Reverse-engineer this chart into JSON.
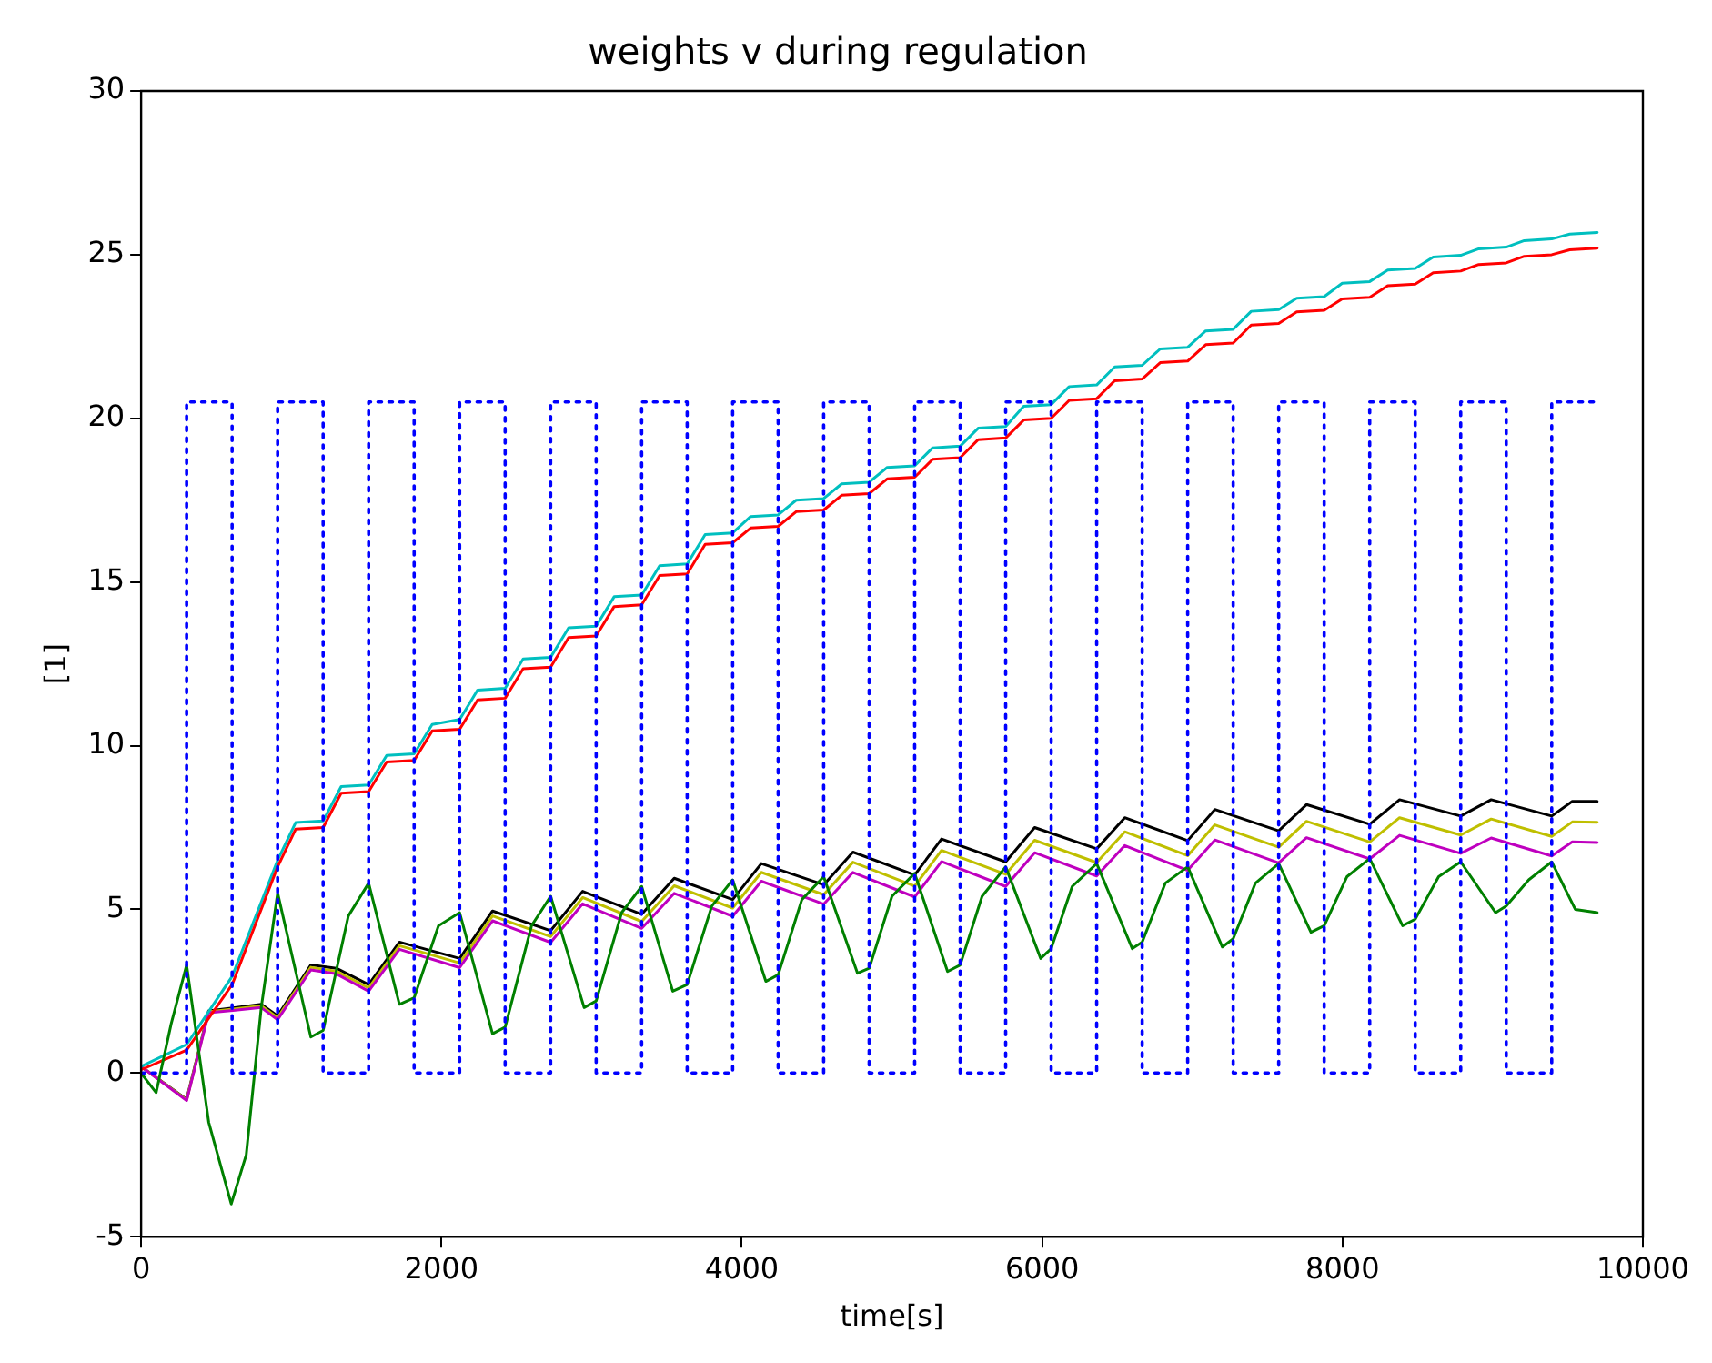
{
  "chart_data": {
    "type": "line",
    "title": "weights v during regulation",
    "xlabel": "time[s]",
    "ylabel": "[1]",
    "xlim": [
      0,
      10000
    ],
    "xticks": [
      0,
      2000,
      4000,
      6000,
      8000,
      10000
    ],
    "ylim": [
      -5,
      30
    ],
    "yticks": [
      -5,
      0,
      5,
      10,
      15,
      20,
      25,
      30
    ],
    "grid": false,
    "legend": false,
    "marker": "none",
    "series": [
      {
        "color": "#0000ff",
        "line_style": "dotted",
        "x": [
          0,
          303,
          303,
          606,
          606,
          909,
          909,
          1212,
          1212,
          1515,
          1515,
          1818,
          1818,
          2121,
          2121,
          2424,
          2424,
          2727,
          2727,
          3030,
          3030,
          3333,
          3333,
          3636,
          3636,
          3939,
          3939,
          4242,
          4242,
          4545,
          4545,
          4848,
          4848,
          5151,
          5151,
          5454,
          5454,
          5757,
          5757,
          6060,
          6060,
          6363,
          6363,
          6666,
          6666,
          6969,
          6969,
          7272,
          7272,
          7575,
          7575,
          7878,
          7878,
          8181,
          8181,
          8484,
          8484,
          8787,
          8787,
          9090,
          9090,
          9393,
          9393,
          9696
        ],
        "values": [
          0,
          0,
          20.5,
          20.5,
          0,
          0,
          20.5,
          20.5,
          0,
          0,
          20.5,
          20.5,
          0,
          0,
          20.5,
          20.5,
          0,
          0,
          20.5,
          20.5,
          0,
          0,
          20.5,
          20.5,
          0,
          0,
          20.5,
          20.5,
          0,
          0,
          20.5,
          20.5,
          0,
          0,
          20.5,
          20.5,
          0,
          0,
          20.5,
          20.5,
          0,
          0,
          20.5,
          20.5,
          0,
          0,
          20.5,
          20.5,
          0,
          0,
          20.5,
          20.5,
          0,
          0,
          20.5,
          20.5,
          0,
          0,
          20.5,
          20.5,
          0,
          0,
          20.5,
          20.5
        ]
      },
      {
        "color": "#008000",
        "x": [
          0,
          100,
          200,
          303,
          450,
          600,
          700,
          800,
          909,
          1130,
          1212,
          1380,
          1515,
          1720,
          1818,
          1980,
          2121,
          2340,
          2424,
          2600,
          2727,
          2950,
          3030,
          3200,
          3333,
          3540,
          3636,
          3800,
          3939,
          4160,
          4242,
          4400,
          4545,
          4770,
          4848,
          5000,
          5151,
          5370,
          5454,
          5600,
          5757,
          5990,
          6060,
          6200,
          6363,
          6600,
          6666,
          6820,
          6969,
          7200,
          7272,
          7420,
          7575,
          7790,
          7878,
          8030,
          8181,
          8400,
          8484,
          8640,
          8787,
          9020,
          9090,
          9240,
          9393,
          9550,
          9696
        ],
        "values": [
          0,
          -0.6,
          1.5,
          3.3,
          -1.5,
          -4,
          -2.5,
          2,
          5.5,
          1.1,
          1.3,
          4.8,
          5.8,
          2.1,
          2.3,
          4.5,
          4.9,
          1.2,
          1.4,
          4.5,
          5.4,
          2,
          2.2,
          4.9,
          5.7,
          2.5,
          2.7,
          5.1,
          5.9,
          2.8,
          3,
          5.3,
          6,
          3.05,
          3.2,
          5.4,
          6.1,
          3.1,
          3.3,
          5.4,
          6.3,
          3.5,
          3.8,
          5.7,
          6.4,
          3.8,
          4,
          5.8,
          6.3,
          3.85,
          4.1,
          5.8,
          6.4,
          4.3,
          4.5,
          6,
          6.55,
          4.5,
          4.7,
          6,
          6.45,
          4.9,
          5.1,
          5.9,
          6.45,
          5,
          4.9
        ]
      },
      {
        "color": "#ff0000",
        "x": [
          0,
          303,
          606,
          909,
          1029,
          1212,
          1332,
          1515,
          1635,
          1818,
          1938,
          2121,
          2241,
          2424,
          2544,
          2727,
          2847,
          3030,
          3150,
          3333,
          3453,
          3636,
          3756,
          3939,
          4059,
          4242,
          4362,
          4545,
          4665,
          4848,
          4968,
          5151,
          5271,
          5454,
          5574,
          5757,
          5877,
          6060,
          6180,
          6363,
          6483,
          6666,
          6786,
          6969,
          7089,
          7272,
          7392,
          7575,
          7695,
          7878,
          7998,
          8181,
          8301,
          8484,
          8604,
          8787,
          8907,
          9090,
          9210,
          9393,
          9513,
          9696
        ],
        "values": [
          0.1,
          0.7,
          2.7,
          6.3,
          7.45,
          7.5,
          8.55,
          8.6,
          9.5,
          9.55,
          10.45,
          10.5,
          11.4,
          11.45,
          12.35,
          12.4,
          13.3,
          13.35,
          14.25,
          14.3,
          15.2,
          15.25,
          16.15,
          16.2,
          16.65,
          16.7,
          17.15,
          17.2,
          17.65,
          17.7,
          18.15,
          18.2,
          18.75,
          18.8,
          19.35,
          19.4,
          19.95,
          20,
          20.55,
          20.6,
          21.15,
          21.2,
          21.7,
          21.75,
          22.25,
          22.3,
          22.85,
          22.9,
          23.25,
          23.3,
          23.65,
          23.7,
          24.05,
          24.1,
          24.45,
          24.5,
          24.7,
          24.75,
          24.95,
          25,
          25.15,
          25.2
        ]
      },
      {
        "color": "#00bfbf",
        "x": [
          0,
          303,
          606,
          909,
          1029,
          1212,
          1332,
          1515,
          1635,
          1818,
          1938,
          2121,
          2241,
          2424,
          2544,
          2727,
          2847,
          3030,
          3150,
          3333,
          3453,
          3636,
          3756,
          3939,
          4059,
          4242,
          4362,
          4545,
          4665,
          4848,
          4968,
          5151,
          5271,
          5454,
          5574,
          5757,
          5877,
          6060,
          6180,
          6363,
          6483,
          6666,
          6786,
          6969,
          7089,
          7272,
          7392,
          7575,
          7695,
          7878,
          7998,
          8181,
          8301,
          8484,
          8604,
          8787,
          8907,
          9090,
          9210,
          9393,
          9513,
          9696
        ],
        "values": [
          0.2,
          0.87,
          2.95,
          6.5,
          7.65,
          7.7,
          8.75,
          8.8,
          9.7,
          9.75,
          10.65,
          10.8,
          11.7,
          11.75,
          12.65,
          12.7,
          13.6,
          13.65,
          14.55,
          14.6,
          15.5,
          15.55,
          16.45,
          16.5,
          17,
          17.05,
          17.5,
          17.55,
          18,
          18.05,
          18.5,
          18.55,
          19.1,
          19.15,
          19.7,
          19.75,
          20.37,
          20.42,
          20.97,
          21.02,
          21.57,
          21.62,
          22.12,
          22.17,
          22.67,
          22.72,
          23.27,
          23.32,
          23.67,
          23.72,
          24.13,
          24.18,
          24.53,
          24.58,
          24.93,
          24.98,
          25.18,
          25.23,
          25.43,
          25.48,
          25.63,
          25.68
        ]
      },
      {
        "color": "#bf00bf",
        "x": [
          0,
          303,
          450,
          800,
          909,
          1130,
          1300,
          1515,
          1720,
          2121,
          2340,
          2727,
          2940,
          3333,
          3550,
          3939,
          4130,
          4545,
          4740,
          5151,
          5330,
          5757,
          5950,
          6363,
          6550,
          6969,
          7150,
          7575,
          7760,
          8181,
          8380,
          8787,
          8990,
          9393,
          9530,
          9696
        ],
        "values": [
          0.2,
          -0.84,
          1.84,
          2,
          1.63,
          3.15,
          3.03,
          2.5,
          3.78,
          3.22,
          4.65,
          3.99,
          5.17,
          4.42,
          5.49,
          4.79,
          5.86,
          5.16,
          6.13,
          5.38,
          6.46,
          5.7,
          6.73,
          6.02,
          6.95,
          6.19,
          7.12,
          6.42,
          7.19,
          6.54,
          7.26,
          6.71,
          7.18,
          6.63,
          7.06,
          7.04
        ]
      },
      {
        "color": "#bfbf00",
        "x": [
          0,
          303,
          450,
          800,
          909,
          1130,
          1300,
          1515,
          1720,
          2121,
          2340,
          2727,
          2940,
          3333,
          3550,
          3939,
          4130,
          4545,
          4740,
          5151,
          5330,
          5757,
          5950,
          6363,
          6550,
          6969,
          7150,
          7575,
          7760,
          8181,
          8380,
          8787,
          8990,
          9393,
          9530,
          9696
        ],
        "values": [
          0.2,
          -0.82,
          1.87,
          2.05,
          1.69,
          3.23,
          3.11,
          2.6,
          3.89,
          3.36,
          4.8,
          4.17,
          5.36,
          4.63,
          5.72,
          5.04,
          6.13,
          5.45,
          6.44,
          5.71,
          6.8,
          6.07,
          7.11,
          6.43,
          7.37,
          6.64,
          7.58,
          6.9,
          7.69,
          7.06,
          7.8,
          7.27,
          7.76,
          7.23,
          7.67,
          7.66
        ]
      },
      {
        "color": "#000000",
        "x": [
          0,
          303,
          450,
          800,
          909,
          1130,
          1300,
          1515,
          1720,
          2121,
          2340,
          2727,
          2940,
          3333,
          3550,
          3939,
          4130,
          4545,
          4740,
          5151,
          5330,
          5757,
          5950,
          6363,
          6550,
          6969,
          7150,
          7575,
          7760,
          8181,
          8380,
          8787,
          8990,
          9393,
          9530,
          9696
        ],
        "values": [
          0.2,
          -0.8,
          1.9,
          2.1,
          1.75,
          3.3,
          3.2,
          2.7,
          4,
          3.5,
          4.95,
          4.35,
          5.55,
          4.85,
          5.95,
          5.3,
          6.4,
          5.75,
          6.75,
          6.05,
          7.15,
          6.45,
          7.5,
          6.85,
          7.8,
          7.1,
          8.05,
          7.4,
          8.2,
          7.6,
          8.35,
          7.85,
          8.35,
          7.85,
          8.3,
          8.3
        ]
      }
    ]
  }
}
